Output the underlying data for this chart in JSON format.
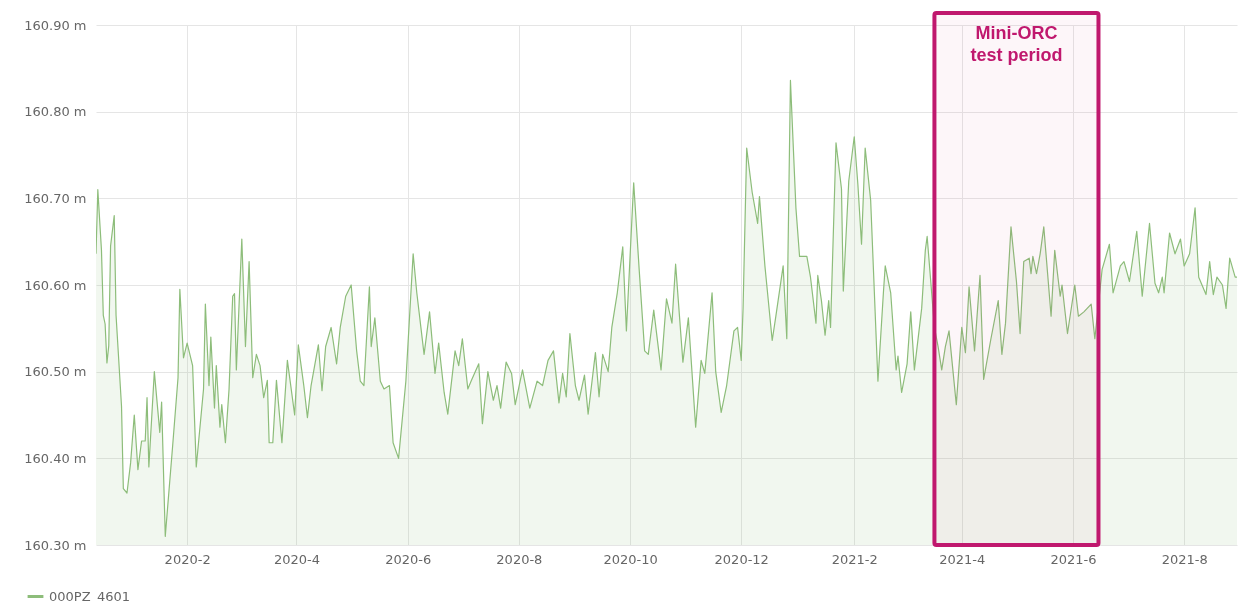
{
  "chart_data": {
    "type": "area",
    "x": [
      "2019-12-13",
      "2019-12-14",
      "2019-12-16",
      "2019-12-17",
      "2019-12-18",
      "2019-12-19",
      "2019-12-20",
      "2019-12-21",
      "2019-12-23",
      "2019-12-24",
      "2019-12-27",
      "2019-12-28",
      "2019-12-30",
      "2020-01-01",
      "2020-01-03",
      "2020-01-05",
      "2020-01-07",
      "2020-01-09",
      "2020-01-10",
      "2020-01-11",
      "2020-01-14",
      "2020-01-17",
      "2020-01-18",
      "2020-01-20",
      "2020-01-24",
      "2020-01-27",
      "2020-01-28",
      "2020-01-30",
      "2020-02-01",
      "2020-02-04",
      "2020-02-06",
      "2020-02-10",
      "2020-02-11",
      "2020-02-13",
      "2020-02-14",
      "2020-02-16",
      "2020-02-17",
      "2020-02-19",
      "2020-02-20",
      "2020-02-22",
      "2020-02-24",
      "2020-02-26",
      "2020-02-27",
      "2020-02-28",
      "2020-03-02",
      "2020-03-04",
      "2020-03-06",
      "2020-03-08",
      "2020-03-10",
      "2020-03-12",
      "2020-03-14",
      "2020-03-16",
      "2020-03-17",
      "2020-03-19",
      "2020-03-21",
      "2020-03-24",
      "2020-03-27",
      "2020-03-31",
      "2020-04-02",
      "2020-04-05",
      "2020-04-07",
      "2020-04-09",
      "2020-04-13",
      "2020-04-15",
      "2020-04-17",
      "2020-04-20",
      "2020-04-23",
      "2020-04-25",
      "2020-04-28",
      "2020-05-01",
      "2020-05-04",
      "2020-05-06",
      "2020-05-08",
      "2020-05-11",
      "2020-05-12",
      "2020-05-14",
      "2020-05-17",
      "2020-05-19",
      "2020-05-22",
      "2020-05-24",
      "2020-05-27",
      "2020-05-31",
      "2020-06-04",
      "2020-06-06",
      "2020-06-10",
      "2020-06-13",
      "2020-06-16",
      "2020-06-18",
      "2020-06-21",
      "2020-06-23",
      "2020-06-27",
      "2020-06-29",
      "2020-07-01",
      "2020-07-04",
      "2020-07-06",
      "2020-07-10",
      "2020-07-12",
      "2020-07-15",
      "2020-07-18",
      "2020-07-20",
      "2020-07-22",
      "2020-07-25",
      "2020-07-28",
      "2020-07-30",
      "2020-08-03",
      "2020-08-07",
      "2020-08-11",
      "2020-08-14",
      "2020-08-17",
      "2020-08-20",
      "2020-08-23",
      "2020-08-25",
      "2020-08-27",
      "2020-08-29",
      "2020-09-01",
      "2020-09-03",
      "2020-09-06",
      "2020-09-08",
      "2020-09-12",
      "2020-09-14",
      "2020-09-16",
      "2020-09-19",
      "2020-09-21",
      "2020-09-24",
      "2020-09-27",
      "2020-09-29",
      "2020-10-03",
      "2020-10-06",
      "2020-10-09",
      "2020-10-11",
      "2020-10-14",
      "2020-10-18",
      "2020-10-21",
      "2020-10-24",
      "2020-10-26",
      "2020-10-30",
      "2020-11-02",
      "2020-11-06",
      "2020-11-09",
      "2020-11-11",
      "2020-11-15",
      "2020-11-17",
      "2020-11-20",
      "2020-11-23",
      "2020-11-27",
      "2020-11-29",
      "2020-12-01",
      "2020-12-02",
      "2020-12-04",
      "2020-12-07",
      "2020-12-10",
      "2020-12-11",
      "2020-12-14",
      "2020-12-18",
      "2020-12-20",
      "2020-12-24",
      "2020-12-26",
      "2020-12-28",
      "2020-12-31",
      "2021-01-02",
      "2021-01-06",
      "2021-01-08",
      "2021-01-11",
      "2021-01-12",
      "2021-01-14",
      "2021-01-16",
      "2021-01-18",
      "2021-01-19",
      "2021-01-22",
      "2021-01-25",
      "2021-01-26",
      "2021-01-29",
      "2021-02-01",
      "2021-02-03",
      "2021-02-05",
      "2021-02-07",
      "2021-02-10",
      "2021-02-14",
      "2021-02-17",
      "2021-02-18",
      "2021-02-21",
      "2021-02-24",
      "2021-02-25",
      "2021-02-27",
      "2021-03-02",
      "2021-03-04",
      "2021-03-06",
      "2021-03-10",
      "2021-03-12",
      "2021-03-13",
      "2021-03-17",
      "2021-03-19",
      "2021-03-21",
      "2021-03-23",
      "2021-03-25",
      "2021-03-29",
      "2021-04-01",
      "2021-04-03",
      "2021-04-05",
      "2021-04-08",
      "2021-04-11",
      "2021-04-13",
      "2021-04-17",
      "2021-04-21",
      "2021-04-23",
      "2021-04-25",
      "2021-04-28",
      "2021-05-01",
      "2021-05-03",
      "2021-05-05",
      "2021-05-08",
      "2021-05-09",
      "2021-05-10",
      "2021-05-12",
      "2021-05-14",
      "2021-05-16",
      "2021-05-20",
      "2021-05-22",
      "2021-05-25",
      "2021-05-26",
      "2021-05-29",
      "2021-06-02",
      "2021-06-04",
      "2021-06-07",
      "2021-06-11",
      "2021-06-13",
      "2021-06-17",
      "2021-06-21",
      "2021-06-23",
      "2021-06-27",
      "2021-06-29",
      "2021-07-02",
      "2021-07-06",
      "2021-07-09",
      "2021-07-13",
      "2021-07-16",
      "2021-07-18",
      "2021-07-20",
      "2021-07-21",
      "2021-07-24",
      "2021-07-27",
      "2021-07-30",
      "2021-08-01",
      "2021-08-04",
      "2021-08-07",
      "2021-08-09",
      "2021-08-13",
      "2021-08-15",
      "2021-08-17",
      "2021-08-19",
      "2021-08-22",
      "2021-08-24",
      "2021-08-26",
      "2021-08-29",
      "2021-08-30"
    ],
    "series": [
      {
        "name": "000PZ_4601",
        "color": "#8dbd7a",
        "values": [
          160.636,
          160.71,
          160.64,
          160.565,
          160.555,
          160.51,
          160.53,
          160.645,
          160.68,
          160.565,
          160.46,
          160.365,
          160.36,
          160.395,
          160.45,
          160.387,
          160.42,
          160.42,
          160.47,
          160.39,
          160.5,
          160.43,
          160.465,
          160.31,
          160.413,
          160.493,
          160.595,
          160.516,
          160.533,
          160.507,
          160.39,
          160.48,
          160.578,
          160.484,
          160.54,
          160.458,
          160.507,
          160.436,
          160.462,
          160.418,
          160.48,
          160.587,
          160.59,
          160.502,
          160.653,
          160.529,
          160.627,
          160.493,
          160.52,
          160.507,
          160.47,
          160.49,
          160.418,
          160.418,
          160.49,
          160.418,
          160.513,
          160.45,
          160.531,
          160.484,
          160.447,
          160.484,
          160.531,
          160.478,
          160.529,
          160.551,
          160.509,
          160.551,
          160.587,
          160.6,
          160.524,
          160.489,
          160.484,
          160.598,
          160.529,
          160.562,
          160.489,
          160.48,
          160.484,
          160.418,
          160.4,
          160.489,
          160.636,
          160.591,
          160.52,
          160.569,
          160.498,
          160.533,
          160.476,
          160.451,
          160.524,
          160.507,
          160.538,
          160.48,
          160.49,
          160.509,
          160.44,
          160.5,
          160.467,
          160.484,
          160.458,
          160.511,
          160.498,
          160.462,
          160.502,
          160.458,
          160.489,
          160.484,
          160.513,
          160.524,
          160.464,
          160.498,
          160.471,
          160.544,
          160.484,
          160.467,
          160.496,
          160.451,
          160.522,
          160.471,
          160.52,
          160.5,
          160.551,
          160.591,
          160.644,
          160.547,
          160.718,
          160.618,
          160.524,
          160.52,
          160.571,
          160.502,
          160.584,
          160.556,
          160.624,
          160.511,
          160.562,
          160.436,
          160.513,
          160.498,
          160.591,
          160.5,
          160.453,
          160.484,
          160.547,
          160.551,
          160.513,
          160.573,
          160.758,
          160.707,
          160.671,
          160.702,
          160.622,
          160.536,
          160.564,
          160.622,
          160.538,
          160.836,
          160.689,
          160.633,
          160.633,
          160.609,
          160.556,
          160.611,
          160.582,
          160.542,
          160.582,
          160.551,
          160.764,
          160.711,
          160.593,
          160.72,
          160.771,
          160.716,
          160.647,
          160.758,
          160.698,
          160.489,
          160.591,
          160.622,
          160.591,
          160.502,
          160.518,
          160.476,
          160.509,
          160.569,
          160.502,
          160.573,
          160.64,
          160.656,
          160.551,
          160.529,
          160.502,
          160.529,
          160.547,
          160.462,
          160.551,
          160.522,
          160.598,
          160.524,
          160.611,
          160.491,
          160.538,
          160.582,
          160.52,
          160.556,
          160.667,
          160.604,
          160.544,
          160.627,
          160.631,
          160.613,
          160.633,
          160.613,
          160.636,
          160.667,
          160.564,
          160.64,
          160.587,
          160.6,
          160.544,
          160.6,
          160.564,
          160.569,
          160.578,
          160.538,
          160.618,
          160.647,
          160.591,
          160.622,
          160.627,
          160.604,
          160.662,
          160.587,
          160.671,
          160.602,
          160.591,
          160.609,
          160.591,
          160.66,
          160.636,
          160.653,
          160.622,
          160.636,
          160.689,
          160.609,
          160.589,
          160.627,
          160.589,
          160.609,
          160.6,
          160.573,
          160.631,
          160.609,
          160.609
        ]
      }
    ],
    "xlim": [
      "2019-12-13",
      "2021-08-30"
    ],
    "xticks": [
      {
        "value": "2020-02-01",
        "label": "2020-2"
      },
      {
        "value": "2020-04-01",
        "label": "2020-4"
      },
      {
        "value": "2020-06-01",
        "label": "2020-6"
      },
      {
        "value": "2020-08-01",
        "label": "2020-8"
      },
      {
        "value": "2020-10-01",
        "label": "2020-10"
      },
      {
        "value": "2020-12-01",
        "label": "2020-12"
      },
      {
        "value": "2021-02-01",
        "label": "2021-2"
      },
      {
        "value": "2021-04-01",
        "label": "2021-4"
      },
      {
        "value": "2021-06-01",
        "label": "2021-6"
      },
      {
        "value": "2021-08-01",
        "label": "2021-8"
      }
    ],
    "ylim": [
      160.3,
      160.9
    ],
    "yticks": [
      {
        "value": 160.3,
        "label": "160.30 m"
      },
      {
        "value": 160.4,
        "label": "160.40 m"
      },
      {
        "value": 160.5,
        "label": "160.50 m"
      },
      {
        "value": 160.6,
        "label": "160.60 m"
      },
      {
        "value": 160.7,
        "label": "160.70 m"
      },
      {
        "value": 160.8,
        "label": "160.80 m"
      },
      {
        "value": 160.9,
        "label": "160.90 m"
      }
    ],
    "bands": [
      {
        "axis": "x",
        "from": "2021-03-17",
        "to": "2021-06-15",
        "label": "Mini-ORC test period",
        "color": "#c0186e"
      }
    ],
    "grid": true,
    "legend": "bottom left"
  }
}
